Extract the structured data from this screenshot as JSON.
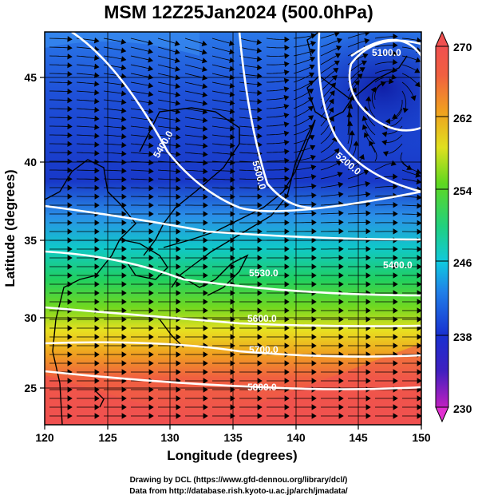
{
  "title": "MSM 12Z25Jan2024 (500.0hPa)",
  "x_axis": {
    "label": "Longitude (degrees)",
    "range": [
      120,
      150
    ],
    "ticks": [
      "120",
      "125",
      "130",
      "135",
      "140",
      "145",
      "150"
    ]
  },
  "y_axis": {
    "label": "Latitude  (degrees)",
    "range": [
      22.4,
      47.6
    ],
    "ticks": [
      "25",
      "30",
      "35",
      "40",
      "45"
    ]
  },
  "colorbar": {
    "min": 230,
    "max": 270,
    "ticks": [
      "230",
      "238",
      "246",
      "254",
      "262",
      "270"
    ]
  },
  "contours": [
    {
      "label": "5100.0"
    },
    {
      "label": "5400.0"
    },
    {
      "label": "5500.0"
    },
    {
      "label": "5200.0"
    },
    {
      "label": "5400.0"
    },
    {
      "label": "5530.0"
    },
    {
      "label": "5600.0"
    },
    {
      "label": "5700.0"
    },
    {
      "label": "5800.0"
    }
  ],
  "credits": {
    "line1": "Drawing by DCL (https://www.gfd-dennou.org/library/dcl/)",
    "line2": "Data from http://database.rish.kyoto-u.ac.jp/arch/jmadata/"
  },
  "colors": {
    "cold": "#1a2dcf",
    "cool": "#00b4e6",
    "mid": "#22d060",
    "warm": "#f0d020",
    "hot": "#f05050",
    "contour": "#ffffff"
  }
}
